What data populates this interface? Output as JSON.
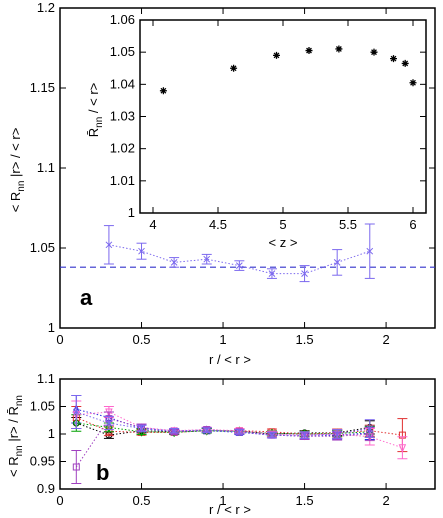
{
  "chart_data": [
    {
      "panel": "a",
      "type": "scatter",
      "xlabel": "r / < r >",
      "ylabel": "< R_nn | r> / < r>",
      "xlim": [
        0,
        2.3
      ],
      "ylim": [
        1.0,
        1.2
      ],
      "xticks": [
        "0",
        "0.5",
        "1",
        "1.5",
        "2"
      ],
      "yticks": [
        "1",
        "1.05",
        "1.1",
        "1.15",
        "1.2"
      ],
      "series": [
        {
          "marker": "x",
          "color": "#7b68ee",
          "line": "dotted",
          "x": [
            0.3,
            0.5,
            0.7,
            0.9,
            1.1,
            1.3,
            1.5,
            1.7,
            1.9
          ],
          "y": [
            1.052,
            1.048,
            1.041,
            1.043,
            1.039,
            1.034,
            1.034,
            1.041,
            1.048
          ],
          "err": [
            0.012,
            0.005,
            0.003,
            0.003,
            0.003,
            0.003,
            0.005,
            0.008,
            0.017
          ]
        }
      ],
      "reference_line": {
        "y": 1.038,
        "color": "#3333cc",
        "style": "dashed"
      }
    },
    {
      "panel": "inset",
      "type": "scatter",
      "xlabel": "< z >",
      "ylabel": "R̄_nn / < r>",
      "xlim": [
        3.9,
        6.1
      ],
      "ylim": [
        1.0,
        1.06
      ],
      "xticks": [
        "4",
        "4.5",
        "5",
        "5.5",
        "6"
      ],
      "yticks": [
        "1",
        "1.01",
        "1.02",
        "1.03",
        "1.04",
        "1.05",
        "1.06"
      ],
      "series": [
        {
          "marker": "*",
          "color": "#000000",
          "x": [
            4.08,
            4.62,
            4.95,
            5.2,
            5.43,
            5.7,
            5.85,
            5.94,
            6.0
          ],
          "y": [
            1.038,
            1.045,
            1.049,
            1.0505,
            1.051,
            1.05,
            1.048,
            1.0465,
            1.0405
          ]
        }
      ]
    },
    {
      "panel": "b",
      "type": "scatter",
      "xlabel": "r / < r >",
      "ylabel": "< R_nn | r> / R̄_nn",
      "xlim": [
        0,
        2.3
      ],
      "ylim": [
        0.9,
        1.1
      ],
      "xticks": [
        "0",
        "0.5",
        "1",
        "1.5",
        "2"
      ],
      "yticks": [
        "0.9",
        "0.95",
        "1",
        "1.05",
        "1.1"
      ],
      "series": [
        {
          "color": "#000000",
          "marker": "o",
          "x": [
            0.1,
            0.3,
            0.5,
            0.7,
            0.9,
            1.1,
            1.3,
            1.5,
            1.7,
            1.9
          ],
          "y": [
            1.02,
            0.998,
            1.006,
            1.004,
            1.007,
            1.005,
            1.0,
            1.002,
            1.002,
            1.012
          ],
          "err": [
            0.01,
            0.006,
            0.004,
            0.003,
            0.003,
            0.003,
            0.004,
            0.004,
            0.005,
            0.012
          ]
        },
        {
          "color": "#e03030",
          "marker": "s",
          "x": [
            0.1,
            0.3,
            0.5,
            0.7,
            0.9,
            1.1,
            1.3,
            1.5,
            1.7,
            1.9,
            2.1
          ],
          "y": [
            1.03,
            1.005,
            1.003,
            1.003,
            1.006,
            1.006,
            1.004,
            1.0,
            1.002,
            1.006,
            0.998
          ],
          "err": [
            0.02,
            0.008,
            0.005,
            0.004,
            0.004,
            0.004,
            0.005,
            0.005,
            0.007,
            0.01,
            0.03
          ]
        },
        {
          "color": "#3030e0",
          "marker": "^",
          "x": [
            0.1,
            0.3,
            0.5,
            0.7,
            0.9,
            1.1,
            1.3,
            1.5,
            1.7,
            1.9
          ],
          "y": [
            1.045,
            1.03,
            1.01,
            1.004,
            1.006,
            1.003,
            0.998,
            0.996,
            0.998,
            1.002
          ],
          "err": [
            0.025,
            0.01,
            0.006,
            0.004,
            0.004,
            0.004,
            0.005,
            0.005,
            0.007,
            0.012
          ]
        },
        {
          "color": "#00a000",
          "marker": "d",
          "x": [
            0.1,
            0.3,
            0.5,
            0.7,
            0.9,
            1.1,
            1.3,
            1.5,
            1.7,
            1.9
          ],
          "y": [
            1.02,
            1.012,
            1.004,
            1.003,
            1.006,
            1.005,
            1.001,
            1.0,
            1.001,
            1.004
          ],
          "err": [
            0.015,
            0.008,
            0.005,
            0.004,
            0.004,
            0.004,
            0.005,
            0.005,
            0.006,
            0.01
          ]
        },
        {
          "color": "#ff66cc",
          "marker": "v",
          "x": [
            0.1,
            0.3,
            0.5,
            0.7,
            0.9,
            1.1,
            1.3,
            1.5,
            1.7,
            1.9,
            2.1
          ],
          "y": [
            1.035,
            1.04,
            1.012,
            1.006,
            1.008,
            1.006,
            1.0,
            0.998,
            1.0,
            0.995,
            0.975
          ],
          "err": [
            0.025,
            0.01,
            0.006,
            0.004,
            0.004,
            0.004,
            0.005,
            0.006,
            0.008,
            0.015,
            0.02
          ]
        },
        {
          "color": "#a040c0",
          "marker": "s",
          "x": [
            0.1,
            0.3,
            0.5,
            0.7,
            0.9,
            1.1,
            1.3,
            1.5,
            1.7,
            1.9
          ],
          "y": [
            0.94,
            1.028,
            1.012,
            1.004,
            1.008,
            1.004,
            0.998,
            0.996,
            0.996,
            1.0
          ],
          "err": [
            0.03,
            0.012,
            0.006,
            0.004,
            0.004,
            0.004,
            0.005,
            0.006,
            0.007,
            0.012
          ]
        },
        {
          "color": "#7b68ee",
          "marker": "x",
          "x": [
            0.1,
            0.3,
            0.5,
            0.7,
            0.9,
            1.1,
            1.3,
            1.5,
            1.7,
            1.9
          ],
          "y": [
            1.04,
            1.02,
            1.01,
            1.006,
            1.007,
            1.004,
            0.998,
            0.998,
            1.0,
            1.01
          ],
          "err": [
            0.03,
            0.012,
            0.006,
            0.004,
            0.004,
            0.004,
            0.005,
            0.006,
            0.008,
            0.016
          ]
        }
      ]
    }
  ]
}
